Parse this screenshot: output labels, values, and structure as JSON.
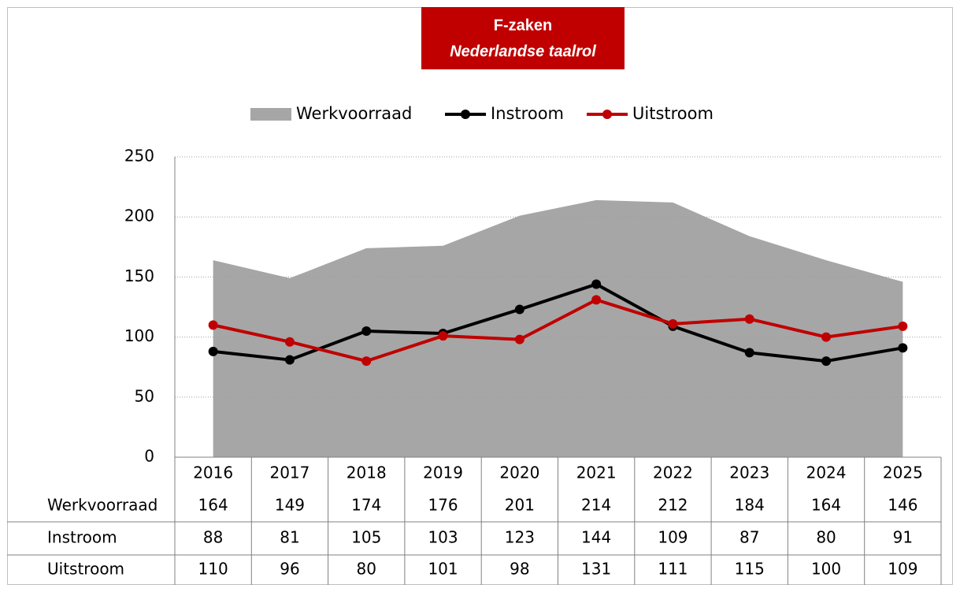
{
  "chart_data": {
    "type": "line",
    "title": "F-zaken",
    "subtitle": "Nederlandse taalrol",
    "categories": [
      "2016",
      "2017",
      "2018",
      "2019",
      "2020",
      "2021",
      "2022",
      "2023",
      "2024",
      "2025"
    ],
    "series": [
      {
        "name": "Werkvoorraad",
        "type": "area",
        "color": "#a6a6a6",
        "values": [
          164,
          149,
          174,
          176,
          201,
          214,
          212,
          184,
          164,
          146
        ]
      },
      {
        "name": "Instroom",
        "type": "line",
        "color": "#000000",
        "values": [
          88,
          81,
          105,
          103,
          123,
          144,
          109,
          87,
          80,
          91
        ]
      },
      {
        "name": "Uitstroom",
        "type": "line",
        "color": "#c00000",
        "values": [
          110,
          96,
          80,
          101,
          98,
          131,
          111,
          115,
          100,
          109
        ]
      }
    ],
    "ylim": [
      0,
      250
    ],
    "yticks": [
      0,
      50,
      100,
      150,
      200,
      250
    ],
    "grid": true,
    "legend": "top",
    "data_table": true
  }
}
